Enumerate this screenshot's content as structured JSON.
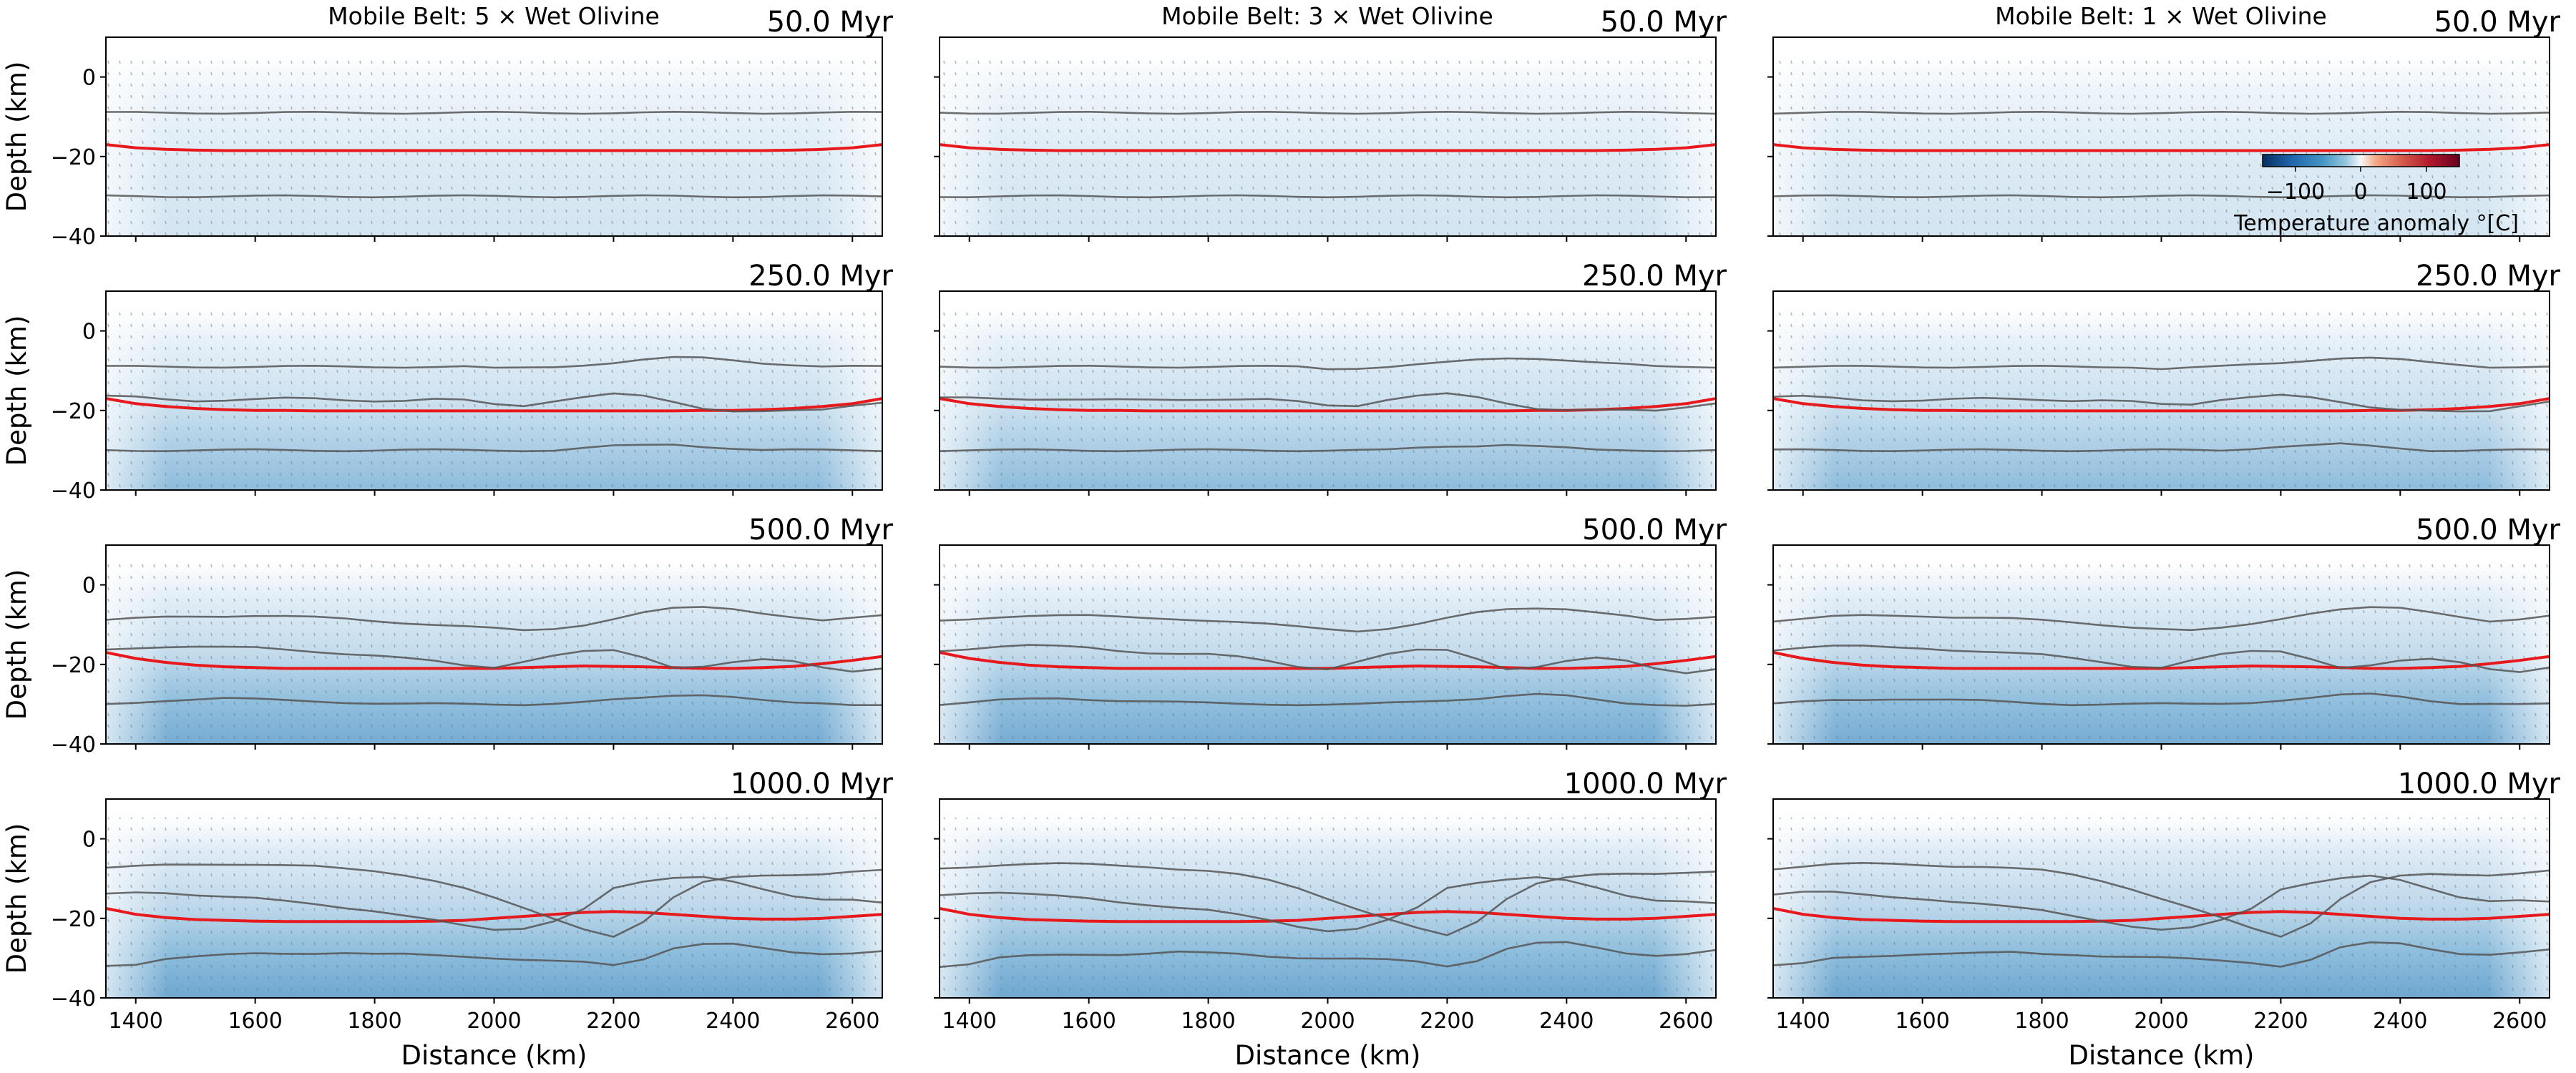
{
  "chart_data": {
    "type": "line",
    "layout": "4 rows x 3 columns of panels",
    "column_titles": [
      "Mobile Belt: 5 × Wet Olivine",
      "Mobile Belt: 3 × Wet Olivine",
      "Mobile Belt: 1 × Wet Olivine"
    ],
    "row_time_labels": [
      "50.0 Myr",
      "250.0 Myr",
      "500.0 Myr",
      "1000.0 Myr"
    ],
    "xlabel": "Distance (km)",
    "ylabel": "Depth (km)",
    "xlim": [
      1350,
      2650
    ],
    "ylim": [
      -40,
      10
    ],
    "xticks": [
      "1400",
      "1600",
      "1800",
      "2000",
      "2200",
      "2400",
      "2600"
    ],
    "yticks": [
      "0",
      "−20",
      "−40"
    ],
    "colorbar": {
      "label": "Temperature anomaly °[C]",
      "ticks": [
        "−100",
        "0",
        "100"
      ],
      "range": [
        -150,
        150
      ],
      "colormap": "RdBu_r",
      "placement": "upper-right of top-right panel"
    },
    "background": "temperature anomaly field (blue = negative) with velocity arrows",
    "colors": {
      "red_line": "#e8191c",
      "grey_lines": "#555555",
      "frame": "#000000"
    },
    "x": [
      1350,
      1400,
      1450,
      1500,
      1550,
      1600,
      1650,
      1700,
      1750,
      1800,
      1850,
      1900,
      1950,
      2000,
      2050,
      2100,
      2150,
      2200,
      2250,
      2300,
      2350,
      2400,
      2450,
      2500,
      2550,
      2600,
      2650
    ],
    "panels": [
      {
        "row": 0,
        "series": [
          {
            "color": "red",
            "values": [
              -17,
              -17.8,
              -18.2,
              -18.4,
              -18.5,
              -18.5,
              -18.5,
              -18.5,
              -18.5,
              -18.5,
              -18.5,
              -18.5,
              -18.5,
              -18.5,
              -18.5,
              -18.5,
              -18.5,
              -18.5,
              -18.5,
              -18.5,
              -18.5,
              -18.5,
              -18.5,
              -18.4,
              -18.2,
              -17.8,
              -17
            ]
          },
          {
            "color": "grey",
            "values": [
              -9,
              -9,
              -9,
              -9,
              -9,
              -9,
              -9,
              -9,
              -9,
              -9,
              -9,
              -9,
              -9,
              -9,
              -9,
              -9,
              -9,
              -9,
              -9,
              -9,
              -9,
              -9,
              -9,
              -9,
              -9,
              -9,
              -9
            ]
          },
          {
            "color": "grey",
            "values": [
              -30,
              -30,
              -30,
              -30,
              -30,
              -30,
              -30,
              -30,
              -30,
              -30,
              -30,
              -30,
              -30,
              -30,
              -30,
              -30,
              -30,
              -30,
              -30,
              -30,
              -30,
              -30,
              -30,
              -30,
              -30,
              -30,
              -30
            ]
          }
        ]
      },
      {
        "row": 1,
        "series": [
          {
            "color": "red",
            "values": [
              -17,
              -18.3,
              -19,
              -19.5,
              -19.8,
              -20,
              -20,
              -20.1,
              -20.1,
              -20.1,
              -20.1,
              -20.1,
              -20.1,
              -20.1,
              -20.1,
              -20.1,
              -20.1,
              -20.1,
              -20.1,
              -20.1,
              -20,
              -20,
              -19.8,
              -19.5,
              -19,
              -18.3,
              -17
            ]
          },
          {
            "color": "grey",
            "values": [
              -9,
              -9,
              -9,
              -9,
              -9,
              -9,
              -9,
              -9,
              -9,
              -9,
              -9,
              -9,
              -9,
              -9.5,
              -9.3,
              -9,
              -8.5,
              -8,
              -7.3,
              -6.8,
              -6.8,
              -7.3,
              -8,
              -8.5,
              -9,
              -9,
              -9
            ]
          },
          {
            "color": "grey",
            "values": [
              -16.5,
              -16.5,
              -17,
              -17.5,
              -17.5,
              -17.3,
              -17,
              -17,
              -17.3,
              -17.5,
              -17.5,
              -17.2,
              -17.5,
              -18.5,
              -18.8,
              -17.5,
              -16.5,
              -15.8,
              -16.5,
              -18,
              -19.5,
              -20,
              -20,
              -20,
              -20,
              -19,
              -18
            ]
          },
          {
            "color": "grey",
            "values": [
              -30,
              -30,
              -30,
              -30,
              -30,
              -30,
              -30,
              -30,
              -30,
              -30,
              -30,
              -30,
              -30,
              -30,
              -30,
              -30,
              -29.5,
              -29,
              -28.8,
              -28.5,
              -29,
              -29.5,
              -30,
              -30,
              -30,
              -30,
              -30
            ]
          }
        ]
      },
      {
        "row": 2,
        "series": [
          {
            "color": "red",
            "values": [
              -17,
              -18.5,
              -19.5,
              -20.2,
              -20.6,
              -20.8,
              -21,
              -21,
              -21,
              -21,
              -21,
              -21,
              -21,
              -21,
              -20.8,
              -20.6,
              -20.4,
              -20.5,
              -20.6,
              -20.8,
              -21,
              -21,
              -20.8,
              -20.5,
              -19.8,
              -19,
              -18
            ]
          },
          {
            "color": "grey",
            "values": [
              -9,
              -8.5,
              -8,
              -7.8,
              -7.8,
              -7.8,
              -8,
              -8.2,
              -8.5,
              -9,
              -9.5,
              -10,
              -10.5,
              -11,
              -11.5,
              -11,
              -10,
              -8.5,
              -7,
              -6,
              -5.7,
              -6,
              -7,
              -8,
              -9,
              -8.5,
              -7.8
            ]
          },
          {
            "color": "grey",
            "values": [
              -16.5,
              -16,
              -15.5,
              -15.3,
              -15.5,
              -15.8,
              -16.5,
              -17,
              -17.3,
              -17.5,
              -18.2,
              -19.2,
              -20.5,
              -21,
              -19.2,
              -17.5,
              -16.5,
              -16.5,
              -18.5,
              -21,
              -20.5,
              -19.2,
              -18.5,
              -19.2,
              -21,
              -22,
              -21
            ]
          },
          {
            "color": "grey",
            "values": [
              -30,
              -29.5,
              -29,
              -28.8,
              -28.6,
              -28.8,
              -29,
              -29.2,
              -29.5,
              -29.8,
              -30,
              -30,
              -30,
              -30,
              -30,
              -29.8,
              -29.5,
              -29,
              -28.5,
              -27.8,
              -27.5,
              -28,
              -29,
              -29.8,
              -30,
              -30.2,
              -30
            ]
          }
        ]
      },
      {
        "row": 3,
        "series": [
          {
            "color": "red",
            "values": [
              -17.5,
              -19,
              -19.8,
              -20.3,
              -20.5,
              -20.7,
              -20.8,
              -20.8,
              -20.8,
              -20.8,
              -20.8,
              -20.7,
              -20.5,
              -20,
              -19.5,
              -19,
              -18.5,
              -18.3,
              -18.5,
              -19,
              -19.5,
              -20,
              -20.2,
              -20.2,
              -20,
              -19.5,
              -19
            ]
          },
          {
            "color": "grey",
            "values": [
              -7.5,
              -7,
              -6.5,
              -6.3,
              -6.3,
              -6.5,
              -6.8,
              -7,
              -7.5,
              -8,
              -9,
              -10.5,
              -12.5,
              -15,
              -17.5,
              -20,
              -22.5,
              -24.5,
              -21,
              -15,
              -11,
              -9.5,
              -9,
              -9,
              -9,
              -8.5,
              -8
            ]
          },
          {
            "color": "grey",
            "values": [
              -14,
              -13.5,
              -13.5,
              -14,
              -14.5,
              -15,
              -15.8,
              -16.5,
              -17.3,
              -18,
              -19.2,
              -20.5,
              -22,
              -23,
              -22.5,
              -20.5,
              -17.5,
              -12.5,
              -11,
              -10,
              -9.5,
              -10.5,
              -12.5,
              -14.5,
              -15.5,
              -15.5,
              -16
            ]
          },
          {
            "color": "grey",
            "values": [
              -32,
              -31.5,
              -30,
              -29.5,
              -29.2,
              -29,
              -29,
              -28.8,
              -28.5,
              -28.8,
              -29,
              -29.5,
              -29.8,
              -30,
              -30.2,
              -30.5,
              -31,
              -32,
              -30.5,
              -27.5,
              -26.2,
              -26.2,
              -27.5,
              -28.8,
              -29.2,
              -28.8,
              -28
            ]
          }
        ]
      }
    ]
  }
}
